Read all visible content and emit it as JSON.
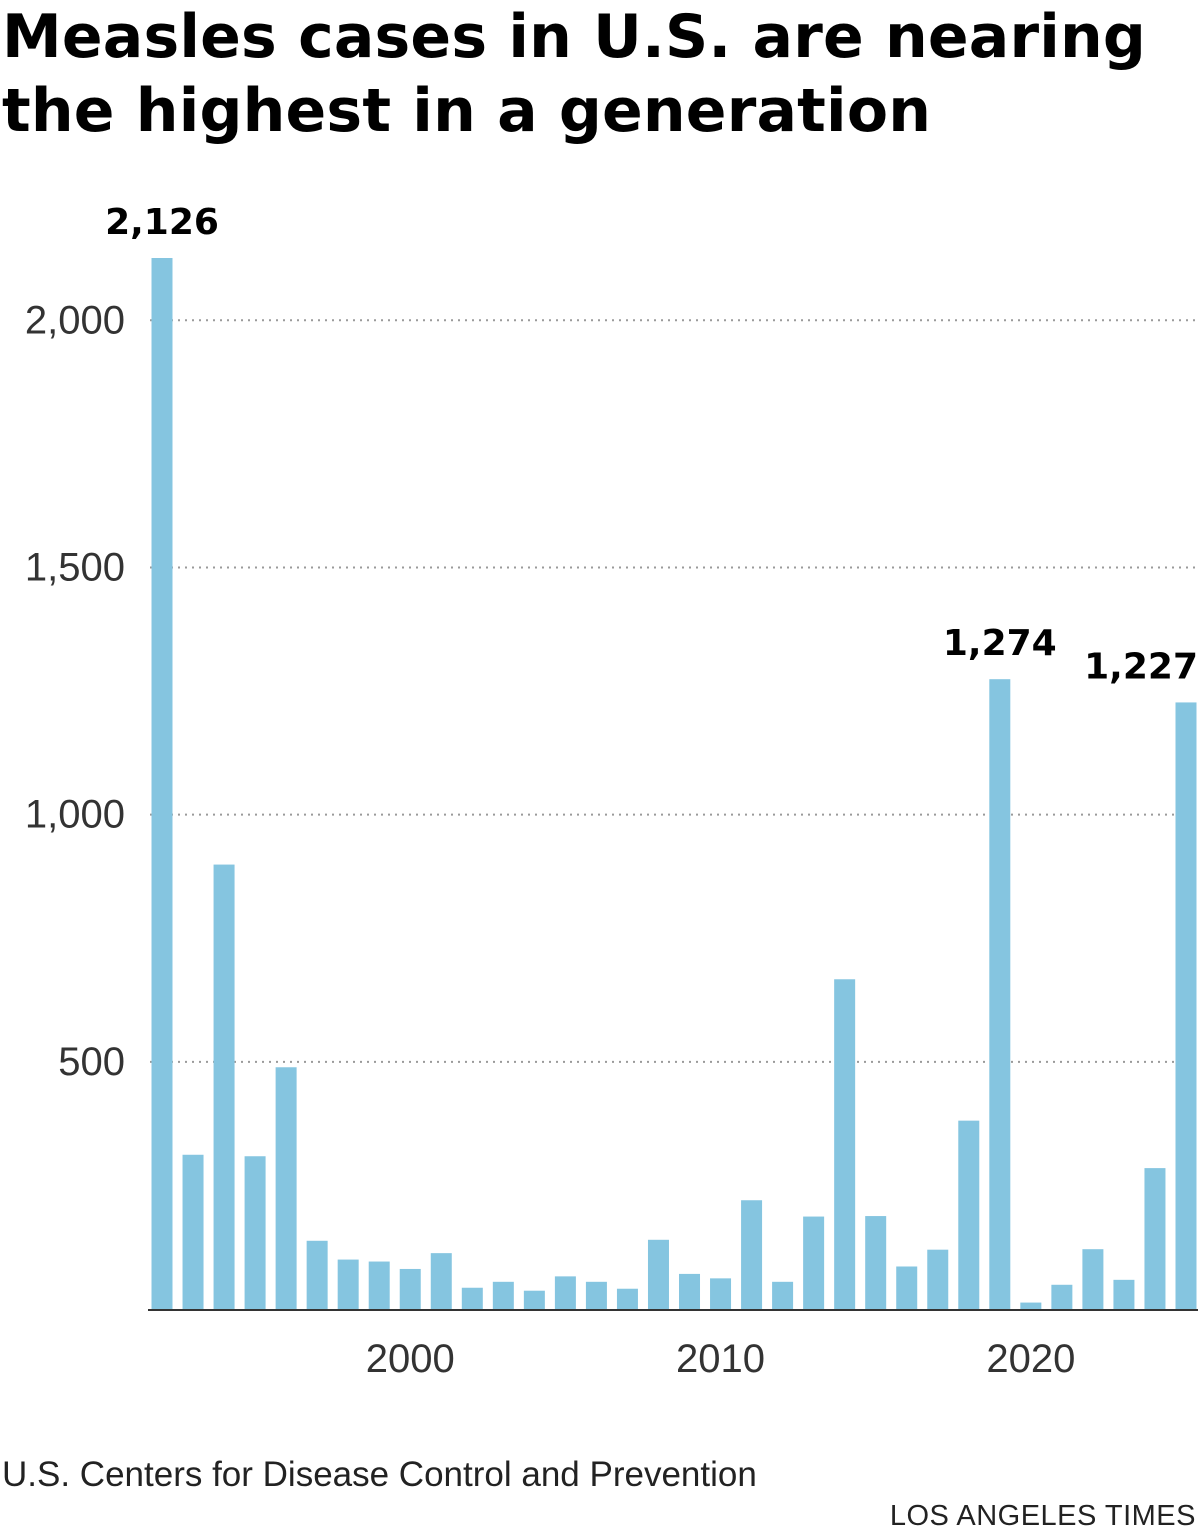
{
  "chart_data": {
    "type": "bar",
    "title": "Measles cases in U.S. are nearing the highest in a generation",
    "xlabel": "",
    "ylabel": "",
    "x": [
      1992,
      1993,
      1994,
      1995,
      1996,
      1997,
      1998,
      1999,
      2000,
      2001,
      2002,
      2003,
      2004,
      2005,
      2006,
      2007,
      2008,
      2009,
      2010,
      2011,
      2012,
      2013,
      2014,
      2015,
      2016,
      2017,
      2018,
      2019,
      2020,
      2021,
      2022,
      2023,
      2024,
      2025
    ],
    "values": [
      2126,
      312,
      899,
      309,
      489,
      138,
      100,
      96,
      81,
      113,
      43,
      55,
      37,
      66,
      55,
      41,
      140,
      71,
      62,
      220,
      55,
      187,
      667,
      188,
      86,
      120,
      381,
      1274,
      13,
      49,
      121,
      59,
      285,
      1227
    ],
    "ylim": [
      0,
      2126
    ],
    "yticks": [
      500,
      1000,
      1500,
      2000
    ],
    "ytick_labels": [
      "500",
      "1,000",
      "1,500",
      "2,000"
    ],
    "xticks": [
      2000,
      2010,
      2020
    ],
    "xtick_labels": [
      "2000",
      "2010",
      "2020"
    ],
    "annotations": [
      {
        "x": 1992,
        "label": "2,126"
      },
      {
        "x": 2019,
        "label": "1,274"
      },
      {
        "x": 2025,
        "label": "1,227"
      }
    ],
    "grid": true,
    "legend": "none",
    "bar_color": "#85c5e0"
  },
  "source": "U.S. Centers for Disease Control and Prevention",
  "credit": "LOS ANGELES TIMES"
}
